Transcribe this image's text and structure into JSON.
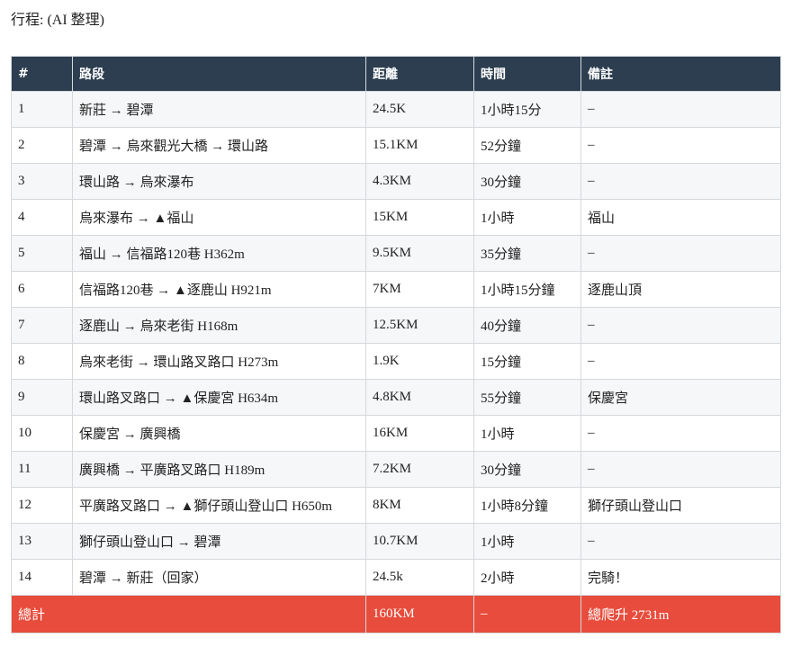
{
  "title": "行程: (AI 整理)",
  "headers": [
    "#",
    "路段",
    "距離",
    "時間",
    "備註"
  ],
  "rows": [
    [
      "1",
      "新莊 → 碧潭",
      "24.5K",
      "1小時15分",
      "–"
    ],
    [
      "2",
      "碧潭 → 烏來觀光大橋 → 環山路",
      "15.1KM",
      "52分鐘",
      "–"
    ],
    [
      "3",
      "環山路 → 烏來瀑布",
      "4.3KM",
      "30分鐘",
      "–"
    ],
    [
      "4",
      "烏來瀑布 → ▲福山",
      "15KM",
      "1小時",
      "福山"
    ],
    [
      "5",
      "福山 → 信福路120巷 H362m",
      "9.5KM",
      "35分鐘",
      "–"
    ],
    [
      "6",
      "信福路120巷 → ▲逐鹿山 H921m",
      "7KM",
      "1小時15分鐘",
      "逐鹿山頂"
    ],
    [
      "7",
      "逐鹿山 → 烏來老街 H168m",
      "12.5KM",
      "40分鐘",
      "–"
    ],
    [
      "8",
      "烏來老街 → 環山路叉路口 H273m",
      "1.9K",
      "15分鐘",
      "–"
    ],
    [
      "9",
      "環山路叉路口 → ▲保慶宮 H634m",
      "4.8KM",
      "55分鐘",
      "保慶宮"
    ],
    [
      "10",
      "保慶宮 → 廣興橋",
      "16KM",
      "1小時",
      "–"
    ],
    [
      "11",
      "廣興橋 → 平廣路叉路口 H189m",
      "7.2KM",
      "30分鐘",
      "–"
    ],
    [
      "12",
      "平廣路叉路口 → ▲獅仔頭山登山口 H650m",
      "8KM",
      "1小時8分鐘",
      "獅仔頭山登山口"
    ],
    [
      "13",
      "獅仔頭山登山口 → 碧潭",
      "10.7KM",
      "1小時",
      "–"
    ],
    [
      "14",
      "碧潭 → 新莊（回家）",
      "24.5k",
      "2小時",
      "完騎！"
    ]
  ],
  "total": {
    "label": "總計",
    "distance": "160KM",
    "time": "–",
    "note": "總爬升 2731m"
  },
  "colors": {
    "header": "#2c3e50",
    "total": "#e74c3c"
  }
}
